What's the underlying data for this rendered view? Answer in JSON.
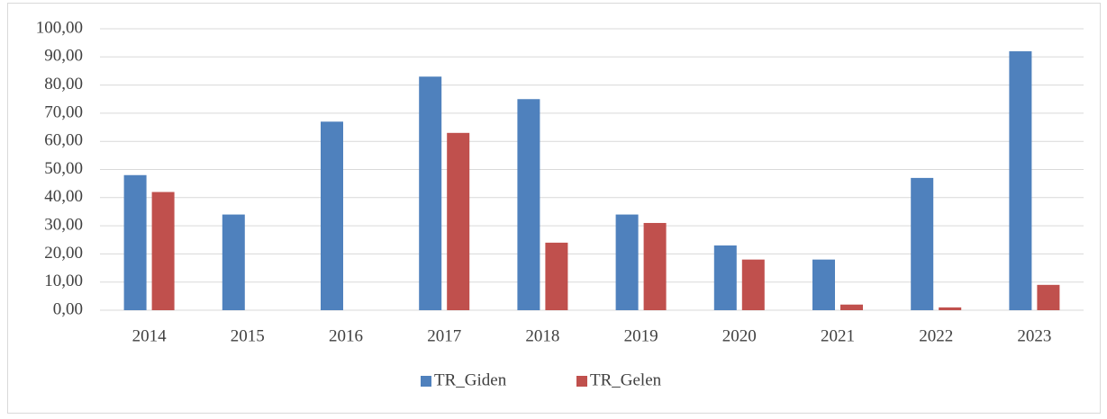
{
  "chart_data": {
    "type": "bar",
    "categories": [
      "2014",
      "2015",
      "2016",
      "2017",
      "2018",
      "2019",
      "2020",
      "2021",
      "2022",
      "2023"
    ],
    "series": [
      {
        "name": "TR_Giden",
        "color": "#4f81bd",
        "values": [
          48,
          34,
          67,
          83,
          75,
          34,
          23,
          18,
          47,
          92
        ]
      },
      {
        "name": "TR_Gelen",
        "color": "#c0504d",
        "values": [
          42,
          0,
          0,
          63,
          24,
          31,
          18,
          2,
          1,
          9
        ]
      }
    ],
    "ylim": [
      0,
      100
    ],
    "yticks": [
      {
        "value": 0,
        "label": "0,00"
      },
      {
        "value": 10,
        "label": "10,00"
      },
      {
        "value": 20,
        "label": "20,00"
      },
      {
        "value": 30,
        "label": "30,00"
      },
      {
        "value": 40,
        "label": "40,00"
      },
      {
        "value": 50,
        "label": "50,00"
      },
      {
        "value": 60,
        "label": "60,00"
      },
      {
        "value": 70,
        "label": "70,00"
      },
      {
        "value": 80,
        "label": "80,00"
      },
      {
        "value": 90,
        "label": "90,00"
      },
      {
        "value": 100,
        "label": "100,00"
      }
    ],
    "grid": true,
    "legend": "bottom"
  }
}
